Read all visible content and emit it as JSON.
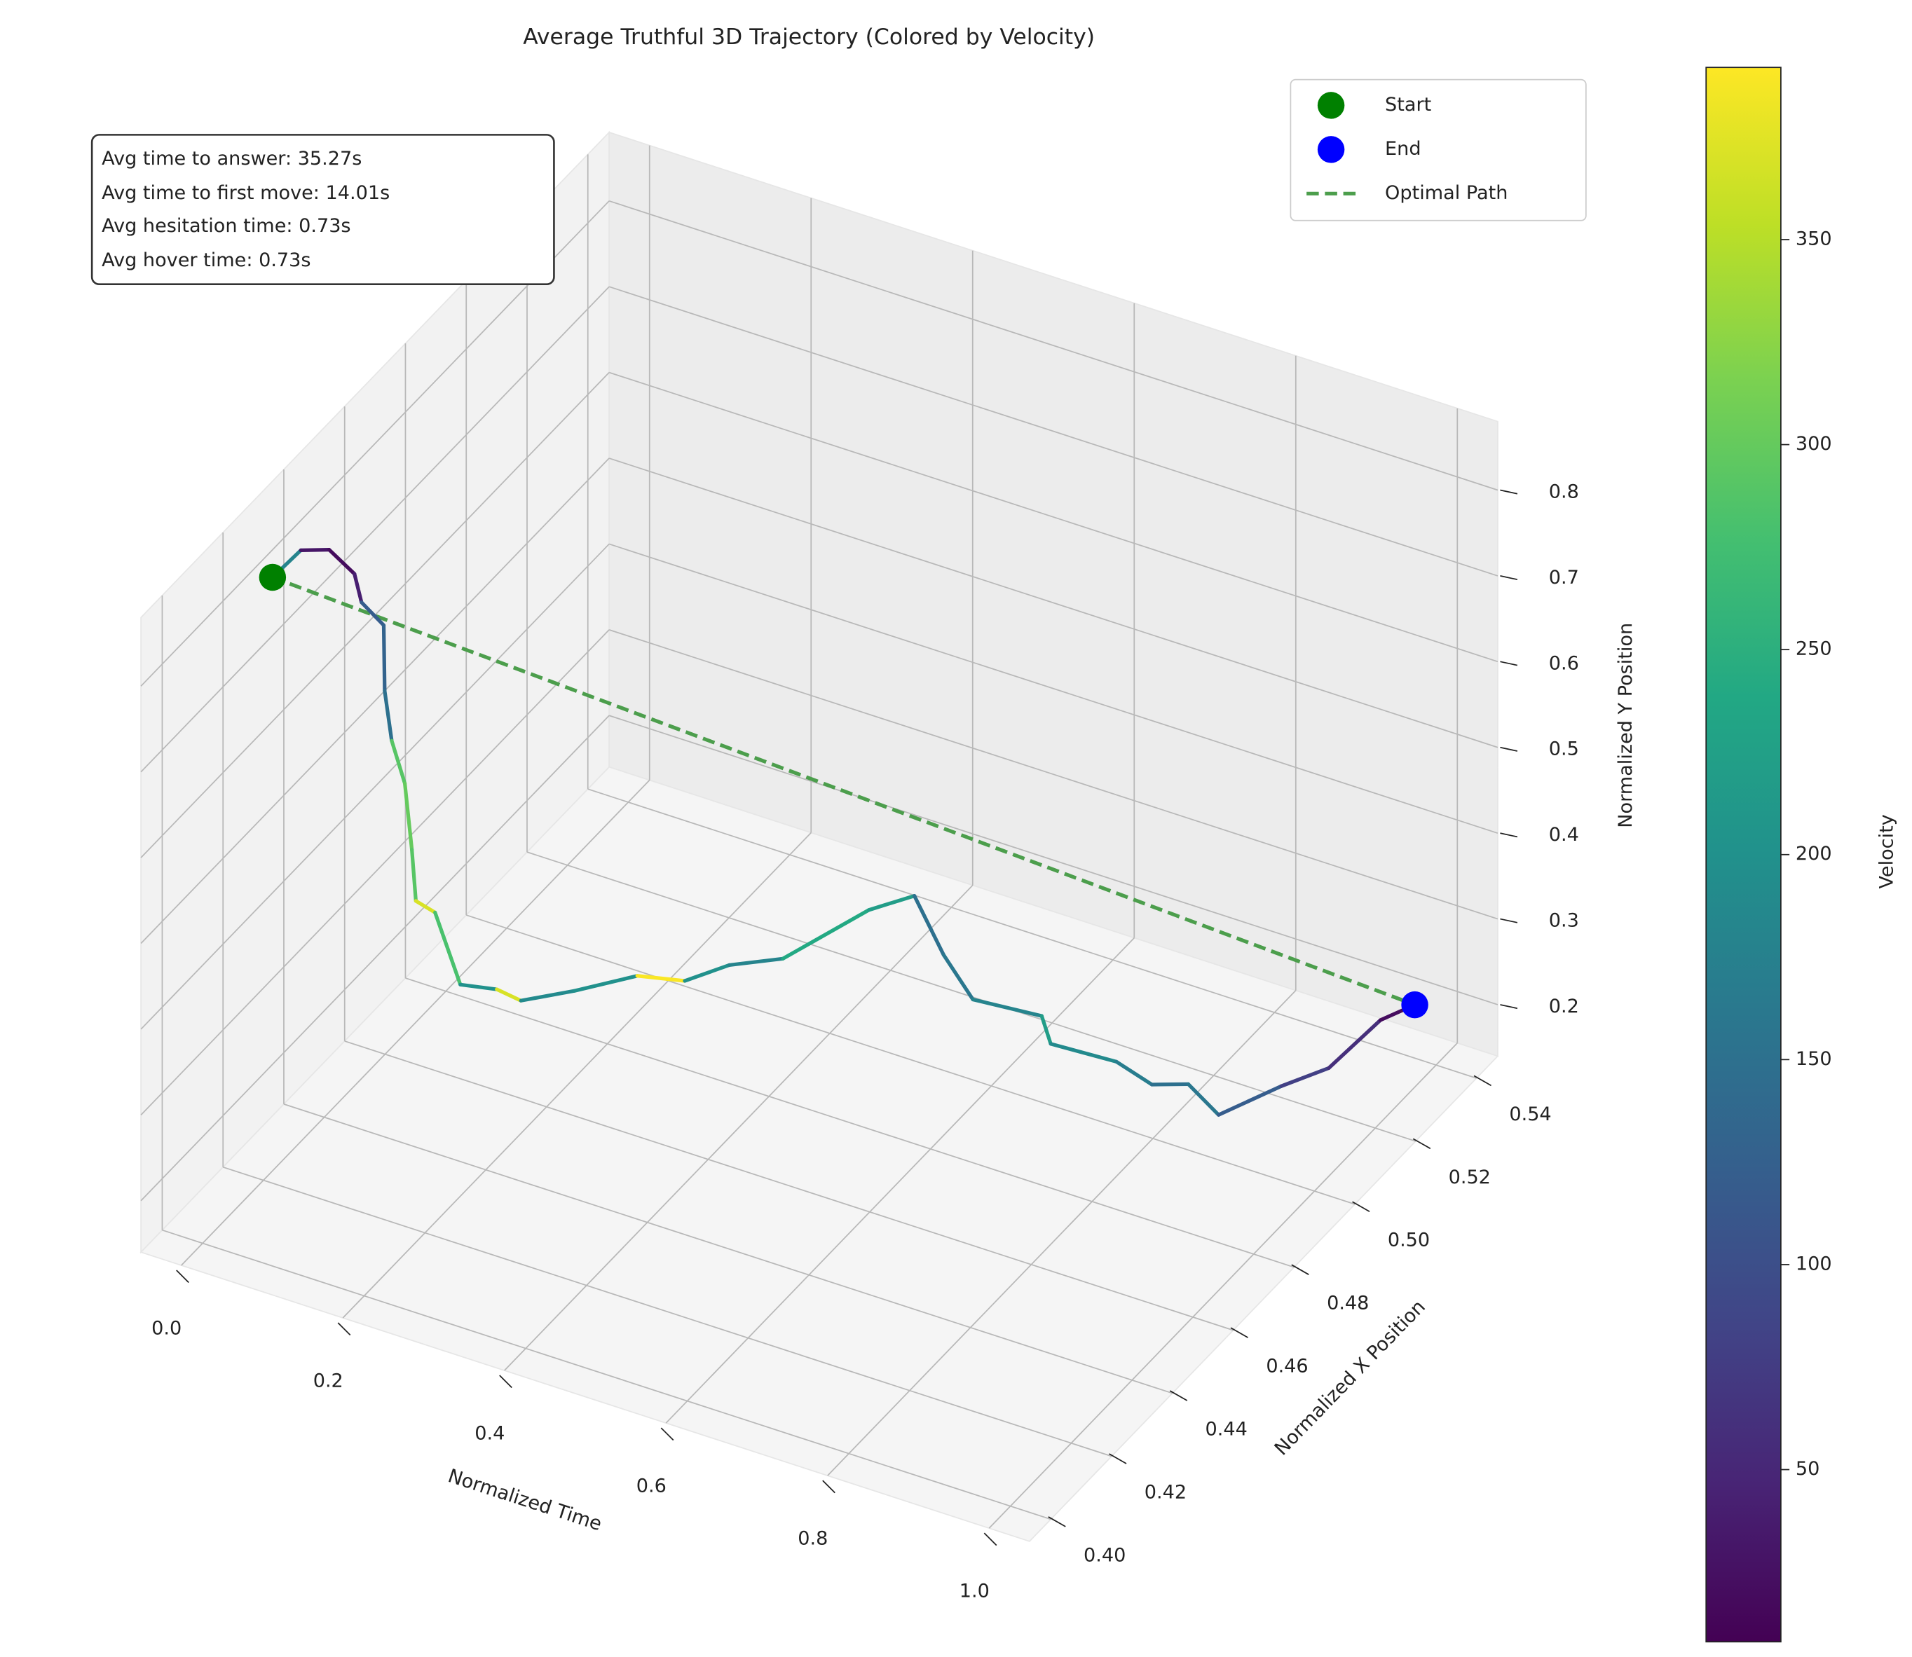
{
  "chart_data": {
    "type": "line3d",
    "title": "Average Truthful 3D Trajectory (Colored by Velocity)",
    "annotations": [
      "Avg time to answer: 35.27s",
      "Avg time to first move: 14.01s",
      "Avg hesitation time: 0.73s",
      "Avg hover time: 0.73s"
    ],
    "xlabel": "Normalized Time",
    "ylabel": "Normalized X Position",
    "zlabel": "Normalized Y Position",
    "colorbar_label": "Velocity",
    "x": [
      0,
      0.02,
      0.04,
      0.06,
      0.08,
      0.1,
      0.12,
      0.14,
      0.16,
      0.18,
      0.2,
      0.22,
      0.24,
      0.27,
      0.3,
      0.34,
      0.38,
      0.42,
      0.46,
      0.5,
      0.55,
      0.58,
      0.62,
      0.66,
      0.7,
      0.73,
      0.77,
      0.81,
      0.84,
      0.87,
      0.91,
      0.95,
      0.98,
      1.0
    ],
    "y": [
      0.423,
      0.427,
      0.431,
      0.434,
      0.431,
      0.433,
      0.428,
      0.425,
      0.424,
      0.421,
      0.417,
      0.418,
      0.421,
      0.425,
      0.425,
      0.432,
      0.442,
      0.447,
      0.451,
      0.458,
      0.473,
      0.48,
      0.479,
      0.478,
      0.49,
      0.485,
      0.496,
      0.497,
      0.501,
      0.503,
      0.513,
      0.518,
      0.527,
      0.533
    ],
    "z": [
      0.832,
      0.855,
      0.847,
      0.814,
      0.798,
      0.77,
      0.718,
      0.677,
      0.637,
      0.577,
      0.538,
      0.527,
      0.438,
      0.427,
      0.423,
      0.421,
      0.414,
      0.402,
      0.418,
      0.412,
      0.429,
      0.429,
      0.376,
      0.34,
      0.289,
      0.284,
      0.235,
      0.217,
      0.212,
      0.178,
      0.187,
      0.202,
      0.234,
      0.236
    ],
    "c": [
      180,
      30,
      20,
      40,
      120,
      130,
      150,
      290,
      300,
      290,
      370,
      280,
      200,
      370,
      190,
      200,
      390,
      200,
      180,
      240,
      220,
      150,
      160,
      180,
      220,
      190,
      170,
      150,
      160,
      120,
      80,
      60,
      20,
      20
    ],
    "colormap": "viridis",
    "clim": [
      8,
      392
    ],
    "cticks": [
      50,
      100,
      150,
      200,
      250,
      300,
      350
    ],
    "xlim": [
      -0.05,
      1.05
    ],
    "ylim": [
      0.393,
      0.547
    ],
    "zlim": [
      0.14,
      0.88
    ],
    "xticks": [
      {
        "value": 0,
        "label": "0.0"
      },
      0.2,
      0.4,
      0.6,
      0.8,
      {
        "value": 1,
        "label": "1.0"
      }
    ],
    "yticks": [
      {
        "value": 0.4,
        "label": "0.40"
      },
      0.42,
      0.44,
      0.46,
      0.48,
      {
        "value": 0.5,
        "label": "0.50"
      },
      0.52,
      0.54
    ],
    "zticks": [
      0.2,
      0.3,
      0.4,
      0.5,
      0.6,
      0.7,
      0.8
    ],
    "grid": true,
    "legend_loc": "upper right",
    "legend": [
      {
        "name": "Start",
        "color": "#008000"
      },
      {
        "name": "End",
        "color": "#0000ff"
      },
      {
        "name": "Optimal Path",
        "color": "#4c9e4c"
      }
    ]
  }
}
